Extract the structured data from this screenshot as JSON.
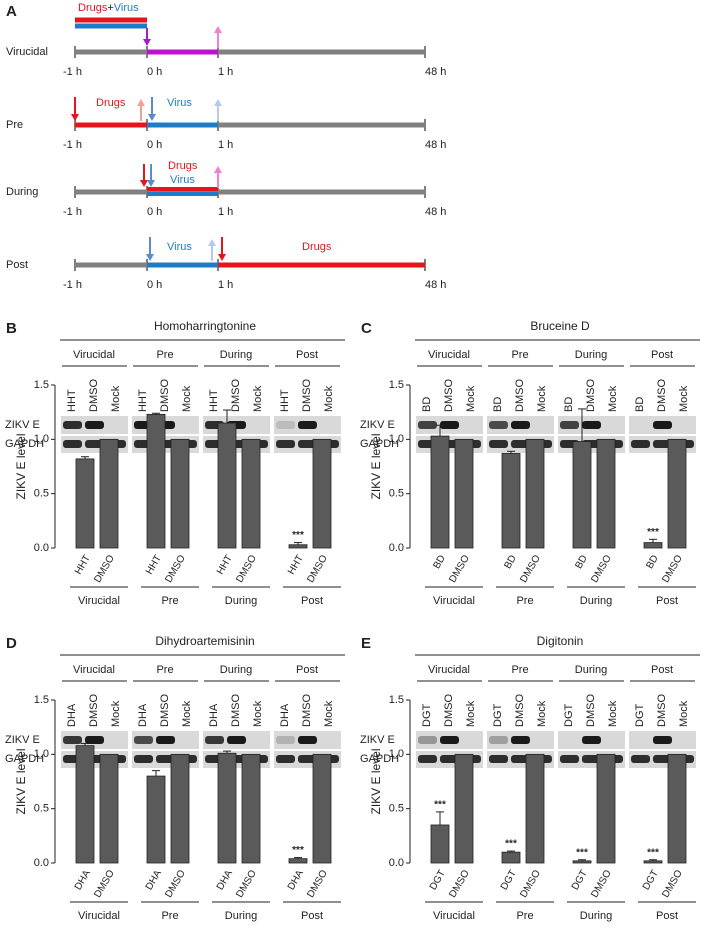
{
  "panel_a": {
    "letter": "A",
    "rows": [
      "Virucidal",
      "Pre",
      "During",
      "Post"
    ],
    "time_labels": [
      "-1 h",
      "0 h",
      "1 h",
      "48 h"
    ],
    "virucidal_label": [
      "Drugs",
      "+",
      "Virus"
    ],
    "drugs": "Drugs",
    "virus": "Virus"
  },
  "chart_data": [
    {
      "type": "bar",
      "letter": "B",
      "title": "Homoharringtonine",
      "groups": [
        "Virucidal",
        "Pre",
        "During",
        "Post"
      ],
      "lanes": [
        "HHT",
        "DMSO",
        "Mock"
      ],
      "blot_rows": [
        "ZIKV E",
        "GAPDH"
      ],
      "ylabel": "ZIKV E level",
      "categories": [
        "HHT",
        "DMSO",
        "HHT",
        "DMSO",
        "HHT",
        "DMSO",
        "HHT",
        "DMSO"
      ],
      "values": [
        0.82,
        1,
        1.23,
        1,
        1.15,
        1,
        0.03,
        1
      ],
      "errors": [
        0.02,
        null,
        0.01,
        null,
        0.12,
        null,
        0.02,
        null
      ],
      "color": "#5a5a5a",
      "ylim": [
        0,
        1.5
      ],
      "yticks": [
        {
          "value": 0,
          "label": "0.0"
        },
        0.5,
        {
          "value": 1,
          "label": "1.0"
        },
        1.5
      ],
      "annotations": [
        {
          "text": "***",
          "index": 6
        }
      ]
    },
    {
      "type": "bar",
      "letter": "C",
      "title": "Bruceine D",
      "groups": [
        "Virucidal",
        "Pre",
        "During",
        "Post"
      ],
      "lanes": [
        "BD",
        "DMSO",
        "Mock"
      ],
      "blot_rows": [
        "ZIKV E",
        "GAPDH"
      ],
      "ylabel": "ZIKV E level",
      "categories": [
        "BD",
        "DMSO",
        "BD",
        "DMSO",
        "BD",
        "DMSO",
        "BD",
        "DMSO"
      ],
      "values": [
        1.03,
        1,
        0.87,
        1,
        0.98,
        1,
        0.05,
        1
      ],
      "errors": [
        0.1,
        null,
        0.02,
        null,
        0.3,
        null,
        0.03,
        null
      ],
      "color": "#5a5a5a",
      "ylim": [
        0,
        1.5
      ],
      "yticks": [
        {
          "value": 0,
          "label": "0.0"
        },
        0.5,
        {
          "value": 1,
          "label": "1.0"
        },
        1.5
      ],
      "annotations": [
        {
          "text": "***",
          "index": 6
        }
      ]
    },
    {
      "type": "bar",
      "letter": "D",
      "title": "Dihydroartemisinin",
      "groups": [
        "Virucidal",
        "Pre",
        "During",
        "Post"
      ],
      "lanes": [
        "DHA",
        "DMSO",
        "Mock"
      ],
      "blot_rows": [
        "ZIKV E",
        "GAPDH"
      ],
      "ylabel": "ZIKV E level",
      "categories": [
        "DHA",
        "DMSO",
        "DHA",
        "DMSO",
        "DHA",
        "DMSO",
        "DHA",
        "DMSO"
      ],
      "values": [
        1.08,
        1,
        0.8,
        1,
        1.01,
        1,
        0.04,
        1
      ],
      "errors": [
        0.02,
        null,
        0.05,
        null,
        0.02,
        null,
        0.01,
        null
      ],
      "color": "#5a5a5a",
      "ylim": [
        0,
        1.5
      ],
      "yticks": [
        {
          "value": 0,
          "label": "0.0"
        },
        0.5,
        {
          "value": 1,
          "label": "1.0"
        },
        1.5
      ],
      "annotations": [
        {
          "text": "***",
          "index": 6
        }
      ]
    },
    {
      "type": "bar",
      "letter": "E",
      "title": "Digitonin",
      "groups": [
        "Virucidal",
        "Pre",
        "During",
        "Post"
      ],
      "lanes": [
        "DGT",
        "DMSO",
        "Mock"
      ],
      "blot_rows": [
        "ZIKV E",
        "GAPDH"
      ],
      "ylabel": "ZIKV E level",
      "categories": [
        "DGT",
        "DMSO",
        "DGT",
        "DMSO",
        "DGT",
        "DMSO",
        "DGT",
        "DMSO"
      ],
      "values": [
        0.35,
        1,
        0.1,
        1,
        0.02,
        1,
        0.02,
        1
      ],
      "errors": [
        0.12,
        null,
        0.01,
        null,
        0.01,
        null,
        0.01,
        null
      ],
      "color": "#5a5a5a",
      "ylim": [
        0,
        1.5
      ],
      "yticks": [
        {
          "value": 0,
          "label": "0.0"
        },
        0.5,
        {
          "value": 1,
          "label": "1.0"
        },
        1.5
      ],
      "annotations": [
        {
          "text": "***",
          "index": 0
        },
        {
          "text": "***",
          "index": 2
        },
        {
          "text": "***",
          "index": 4
        },
        {
          "text": "***",
          "index": 6
        }
      ]
    }
  ]
}
